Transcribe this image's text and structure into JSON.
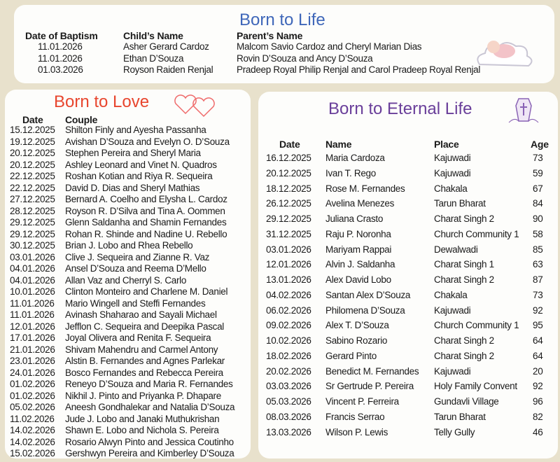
{
  "born_to_life": {
    "title": "Born to Life",
    "headers": [
      "Date of Baptism",
      "Child’s Name",
      "Parent’s Name"
    ],
    "rows": [
      [
        "11.01.2026",
        "Asher Gerard Cardoz",
        "Malcom Savio Cardoz and Cheryl Marian Dias"
      ],
      [
        "11.01.2026",
        "Ethan D’Souza",
        "Rovin D’Souza and Ancy D’Souza"
      ],
      [
        "01.03.2026",
        "Royson Raiden Renjal",
        "Pradeep Royal Philip Renjal and Carol Pradeep Royal Renjal"
      ]
    ],
    "icon": "sleeping-baby-on-cloud-icon"
  },
  "born_to_love": {
    "title": "Born to Love",
    "headers": [
      "Date",
      "Couple"
    ],
    "icon": "two-hearts-icon",
    "rows": [
      [
        "15.12.2025",
        "Shilton Finly and Ayesha Passanha"
      ],
      [
        "19.12.2025",
        "Avishan D’Souza and Evelyn O. D’Souza"
      ],
      [
        "20.12.2025",
        "Stephen Pereira and Sheryl Maria"
      ],
      [
        "20.12.2025",
        "Ashley Leonard and Vinet N. Quadros"
      ],
      [
        "22.12.2025",
        "Roshan Kotian and Riya R. Sequeira"
      ],
      [
        "22.12.2025",
        "David D. Dias and Sheryl Mathias"
      ],
      [
        "27.12.2025",
        "Bernard A. Coelho and Elysha L. Cardoz"
      ],
      [
        "28.12.2025",
        "Royson R. D’Silva and Tina A. Oommen"
      ],
      [
        "29.12.2025",
        "Glenn Saldanha and Shamin Fernandes"
      ],
      [
        "29.12.2025",
        "Rohan R. Shinde and Nadine U. Rebello"
      ],
      [
        "30.12.2025",
        "Brian J. Lobo and Rhea Rebello"
      ],
      [
        "03.01.2026",
        "Clive J. Sequeira and Zianne R. Vaz"
      ],
      [
        "04.01.2026",
        "Ansel D’Souza and Reema D’Mello"
      ],
      [
        "04.01.2026",
        "Allan Vaz and Cherryl S. Carlo"
      ],
      [
        "10.01.2026",
        "Clinton Monteiro and Charlene M. Daniel"
      ],
      [
        "11.01.2026",
        "Mario Wingell and Steffi Fernandes"
      ],
      [
        "11.01.2026",
        "Avinash Shaharao and Sayali Michael"
      ],
      [
        "12.01.2026",
        "Jefflon C. Sequeira and Deepika Pascal"
      ],
      [
        "17.01.2026",
        "Joyal Olivera and Renita F. Sequeira"
      ],
      [
        "21.01.2026",
        "Shivam Mahendru and Carmel Antony"
      ],
      [
        "23.01.2026",
        "Alstin B. Fernandes and Agnes Parlekar"
      ],
      [
        "24.01.2026",
        "Bosco Fernandes and Rebecca Pereira"
      ],
      [
        "01.02.2026",
        "Reneyo D’Souza and Maria R. Fernandes"
      ],
      [
        "01.02.2026",
        "Nikhil J. Pinto and Priyanka P. Dhapare"
      ],
      [
        "05.02.2026",
        "Aneesh Gondhalekar and Natalia D’Souza"
      ],
      [
        "11.02.2026",
        "Jude J. Lobo and Janaki  Muthukrishan"
      ],
      [
        "14.02.2026",
        "Shawn E. Lobo and Nichola S. Pereira"
      ],
      [
        "14.02.2026",
        "Rosario Alwyn Pinto and Jessica Coutinho"
      ],
      [
        "15.02.2026",
        "Gershwyn Pereira and Kimberley D’Souza"
      ]
    ]
  },
  "born_to_eternal_life": {
    "title": "Born to Eternal Life",
    "headers": [
      "Date",
      "Name",
      "Place",
      "Age"
    ],
    "icon": "coffin-with-cross-icon",
    "rows": [
      [
        "16.12.2025",
        "Maria Cardoza",
        "Kajuwadi",
        "73"
      ],
      [
        "20.12.2025",
        "Ivan T. Rego",
        "Kajuwadi",
        "59"
      ],
      [
        "18.12.2025",
        "Rose M. Fernandes",
        "Chakala",
        "67"
      ],
      [
        "26.12.2025",
        "Avelina Menezes",
        "Tarun Bharat",
        "84"
      ],
      [
        "29.12.2025",
        "Juliana Crasto",
        "Charat Singh 2",
        "90"
      ],
      [
        "31.12.2025",
        "Raju P. Noronha",
        "Church Community 1",
        "58"
      ],
      [
        "03.01.2026",
        "Mariyam Rappai",
        "Dewalwadi",
        "85"
      ],
      [
        "12.01.2026",
        "Alvin J. Saldanha",
        "Charat Singh 1",
        "63"
      ],
      [
        "13.01.2026",
        "Alex David Lobo",
        "Charat Singh 2",
        "87"
      ],
      [
        "04.02.2026",
        "Santan Alex D’Souza",
        "Chakala",
        "73"
      ],
      [
        "06.02.2026",
        "Philomena D’Souza",
        "Kajuwadi",
        "92"
      ],
      [
        "09.02.2026",
        "Alex T. D’Souza",
        "Church Community 1",
        "95"
      ],
      [
        "10.02.2026",
        "Sabino Rozario",
        "Charat Singh 2",
        "64"
      ],
      [
        "18.02.2026",
        "Gerard Pinto",
        "Charat Singh 2",
        "64"
      ],
      [
        "20.02.2026",
        "Benedict M. Fernandes",
        "Kajuwadi",
        "20"
      ],
      [
        "03.03.2026",
        "Sr Gertrude P. Pereira",
        "Holy Family Convent",
        "92"
      ],
      [
        "05.03.2026",
        "Vincent P. Ferreira",
        "Gundavli Village",
        "96"
      ],
      [
        "08.03.2026",
        "Francis Serrao",
        "Tarun Bharat",
        "82"
      ],
      [
        "13.03.2026",
        "Wilson P. Lewis",
        "Telly Gully",
        "46"
      ]
    ]
  }
}
